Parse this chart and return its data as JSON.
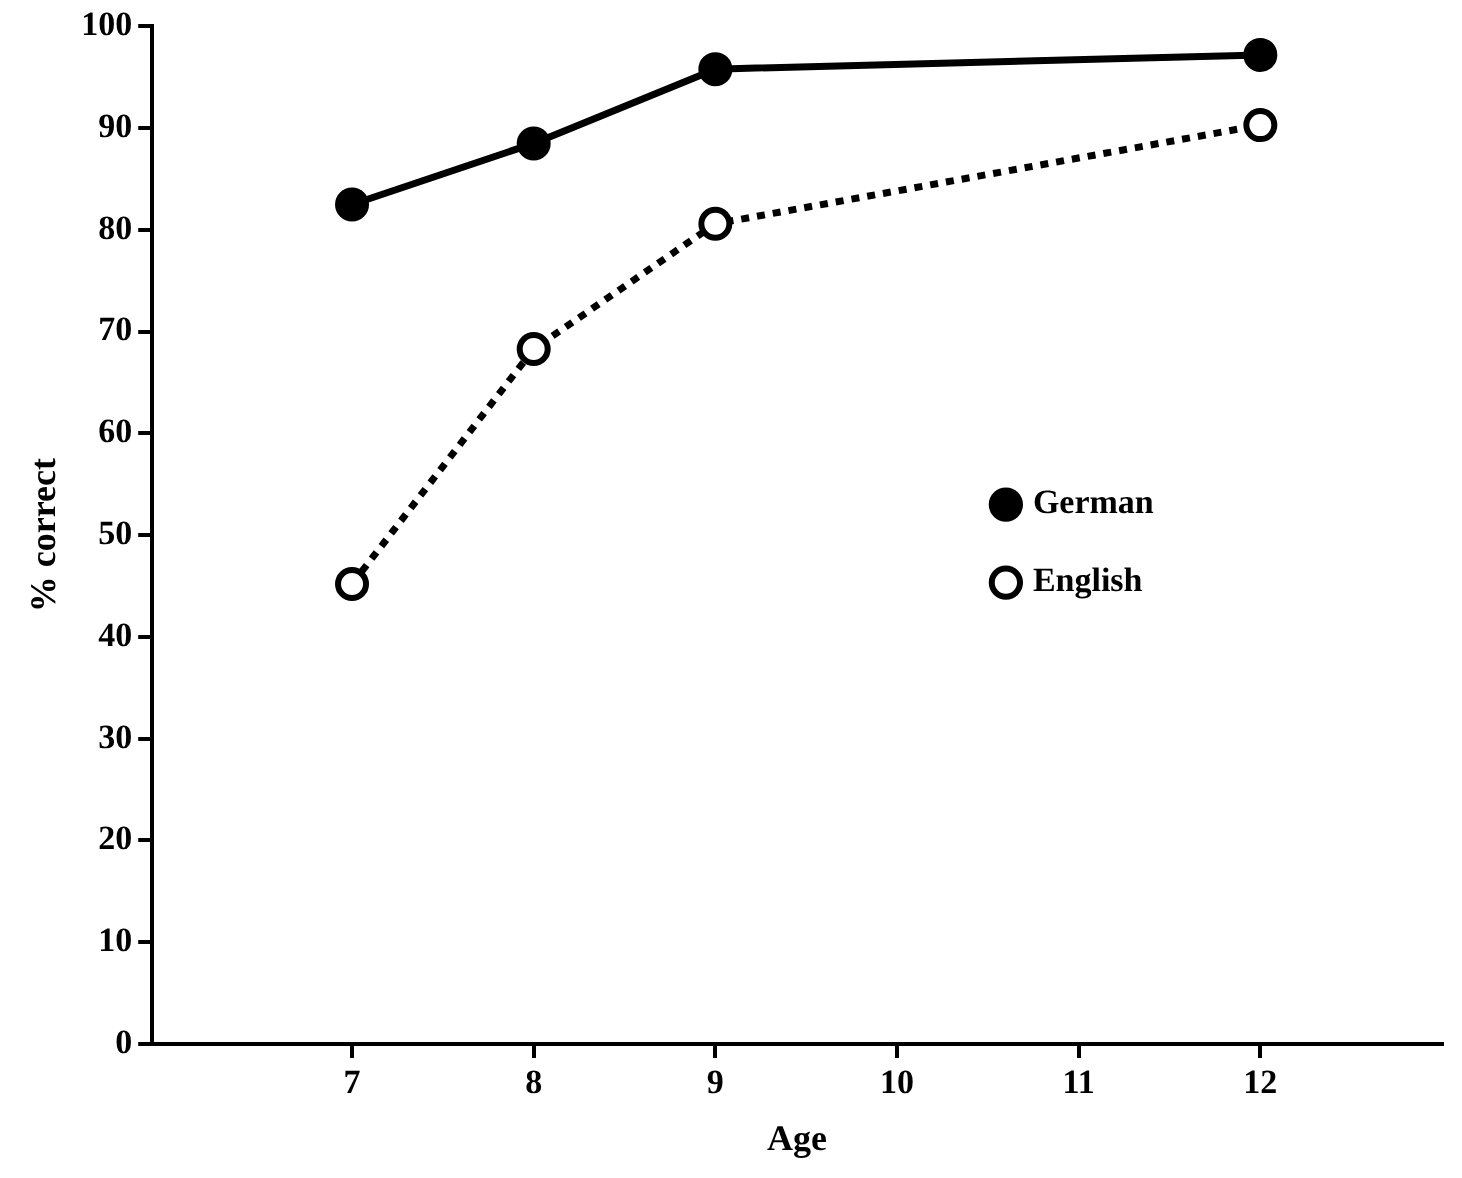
{
  "chart_data": {
    "type": "line",
    "xlabel": "Age",
    "ylabel": "% correct",
    "x": [
      7,
      8,
      9,
      12
    ],
    "series": [
      {
        "name": "German",
        "color": "#000000",
        "values": [
          82.5,
          88.5,
          95.8,
          97.2
        ],
        "marker": "circle",
        "line_style": "solid"
      },
      {
        "name": "English",
        "color": "#000000",
        "values": [
          45.2,
          68.3,
          80.6,
          90.3
        ],
        "marker": "circle",
        "line_style": "dotted"
      }
    ],
    "xlim": [
      5.9,
      13
    ],
    "xticks": [
      7,
      8,
      9,
      10,
      11,
      12
    ],
    "ylim": [
      0,
      100
    ],
    "yticks": [
      0,
      10,
      20,
      30,
      40,
      50,
      60,
      70,
      80,
      90,
      100
    ],
    "grid": false,
    "legend": "right"
  }
}
